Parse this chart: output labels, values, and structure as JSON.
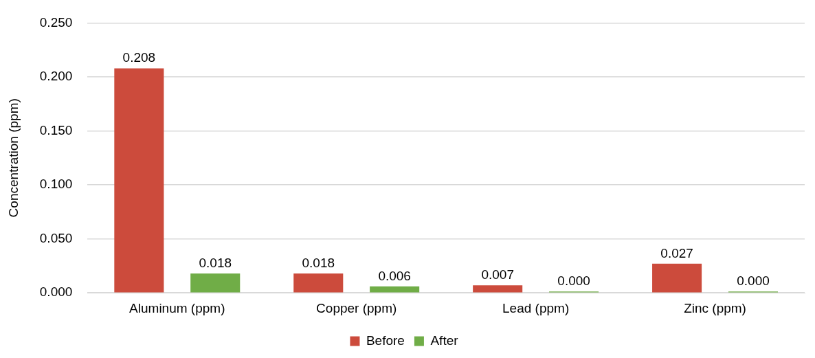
{
  "chart_data": {
    "type": "bar",
    "ylabel": "Concentration (ppm)",
    "categories": [
      "Aluminum (ppm)",
      "Copper (ppm)",
      "Lead (ppm)",
      "Zinc (ppm)"
    ],
    "series": [
      {
        "name": "Before",
        "color": "#cc4b3c",
        "values": [
          0.208,
          0.018,
          0.007,
          0.027
        ],
        "value_labels": [
          "0.208",
          "0.018",
          "0.007",
          "0.027"
        ]
      },
      {
        "name": "After",
        "color": "#70ad47",
        "values": [
          0.018,
          0.006,
          0,
          0
        ],
        "value_labels": [
          "0.018",
          "0.006",
          "0.000",
          "0.000"
        ]
      }
    ],
    "ylim": [
      0,
      0.25
    ],
    "yticks": [
      {
        "value": 0,
        "label": "0.000"
      },
      {
        "value": 0.05,
        "label": "0.050"
      },
      {
        "value": 0.1,
        "label": "0.100"
      },
      {
        "value": 0.15,
        "label": "0.150"
      },
      {
        "value": 0.2,
        "label": "0.200"
      },
      {
        "value": 0.25,
        "label": "0.250"
      }
    ],
    "grid": "y",
    "legend": "bottom"
  }
}
